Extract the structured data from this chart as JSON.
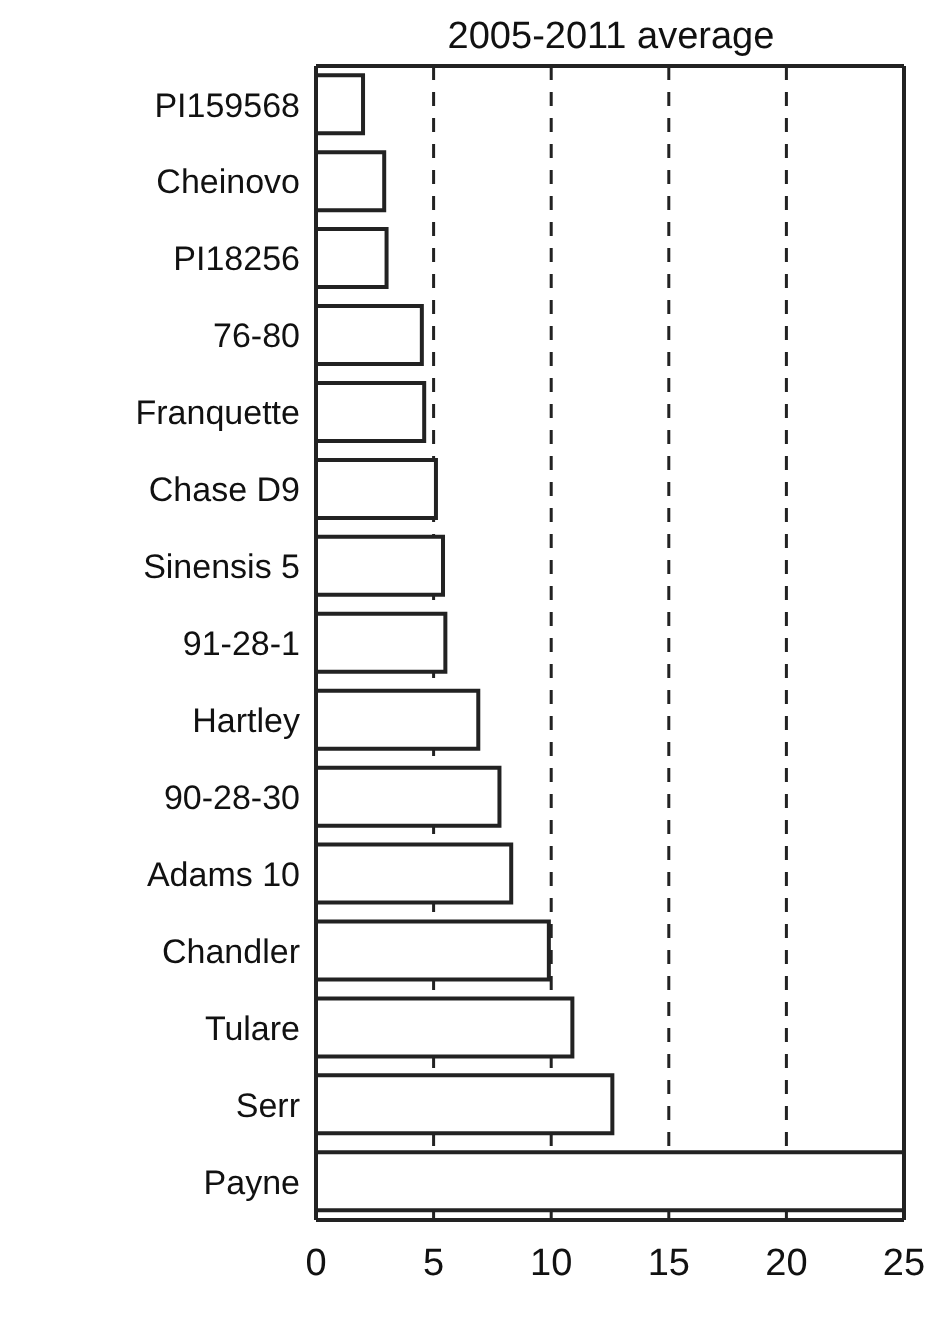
{
  "chart_data": {
    "type": "bar",
    "orientation": "horizontal",
    "title": "2005-2011 average",
    "categories": [
      "PI159568",
      "Cheinovo",
      "PI18256",
      "76-80",
      "Franquette",
      "Chase D9",
      "Sinensis 5",
      "91-28-1",
      "Hartley",
      "90-28-30",
      "Adams 10",
      "Chandler",
      "Tulare",
      "Serr",
      "Payne"
    ],
    "values": [
      2.0,
      2.9,
      3.0,
      4.5,
      4.6,
      5.1,
      5.4,
      5.5,
      6.9,
      7.8,
      8.3,
      9.9,
      10.9,
      12.6,
      25
    ],
    "color": "#ffffff",
    "xlim": [
      0,
      25
    ],
    "xticks": [
      0,
      5,
      10,
      15,
      20,
      25
    ],
    "grid": "x"
  }
}
